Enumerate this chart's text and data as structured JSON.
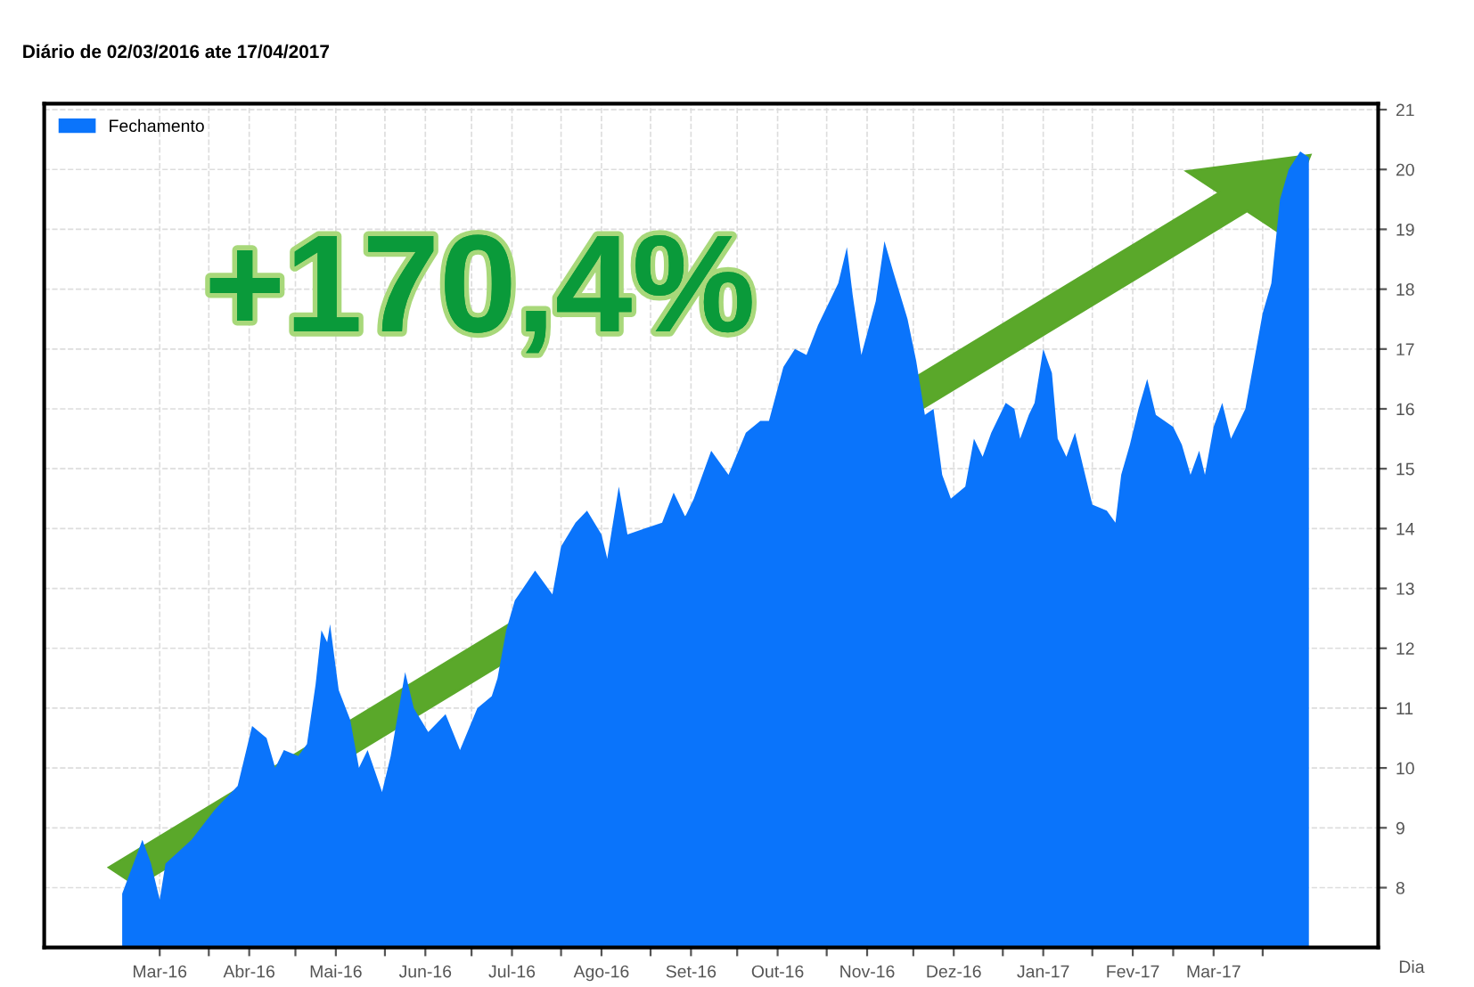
{
  "chart_data": {
    "type": "area",
    "subtitle": "Diário de 02/03/2016 ate 17/04/2017",
    "xlabel": "Dia",
    "annotations": [
      "+170,4%"
    ],
    "x": [
      "2016-03-02",
      "2016-03-09",
      "2016-03-12",
      "2016-03-15",
      "2016-03-17",
      "2016-03-26",
      "2016-04-03",
      "2016-04-11",
      "2016-04-14",
      "2016-04-16",
      "2016-04-21",
      "2016-04-24",
      "2016-04-27",
      "2016-05-02",
      "2016-05-05",
      "2016-05-08",
      "2016-05-10",
      "2016-05-12",
      "2016-05-13",
      "2016-05-16",
      "2016-05-20",
      "2016-05-23",
      "2016-05-26",
      "2016-05-31",
      "2016-06-03",
      "2016-06-08",
      "2016-06-11",
      "2016-06-16",
      "2016-06-22",
      "2016-06-27",
      "2016-07-03",
      "2016-07-08",
      "2016-07-10",
      "2016-07-13",
      "2016-07-16",
      "2016-07-23",
      "2016-07-29",
      "2016-08-01",
      "2016-08-06",
      "2016-08-10",
      "2016-08-15",
      "2016-08-17",
      "2016-08-21",
      "2016-08-24",
      "2016-08-30",
      "2016-09-05",
      "2016-09-09",
      "2016-09-13",
      "2016-09-16",
      "2016-09-22",
      "2016-09-28",
      "2016-10-04",
      "2016-10-09",
      "2016-10-12",
      "2016-10-17",
      "2016-10-21",
      "2016-10-25",
      "2016-10-29",
      "2016-11-05",
      "2016-11-08",
      "2016-11-10",
      "2016-11-13",
      "2016-11-18",
      "2016-11-21",
      "2016-11-24",
      "2016-11-29",
      "2016-12-02",
      "2016-12-05",
      "2016-12-08",
      "2016-12-11",
      "2016-12-14",
      "2016-12-19",
      "2016-12-22",
      "2016-12-25",
      "2016-12-28",
      "2017-01-02",
      "2017-01-05",
      "2017-01-07",
      "2017-01-10",
      "2017-01-12",
      "2017-01-15",
      "2017-01-18",
      "2017-01-20",
      "2017-01-23",
      "2017-01-26",
      "2017-01-29",
      "2017-02-01",
      "2017-02-06",
      "2017-02-09",
      "2017-02-11",
      "2017-02-14",
      "2017-02-17",
      "2017-02-20",
      "2017-02-23",
      "2017-03-01",
      "2017-03-04",
      "2017-03-07",
      "2017-03-10",
      "2017-03-12",
      "2017-03-15",
      "2017-03-18",
      "2017-03-21",
      "2017-03-26",
      "2017-03-29",
      "2017-04-01",
      "2017-04-04",
      "2017-04-07",
      "2017-04-10",
      "2017-04-14",
      "2017-04-17"
    ],
    "series": [
      {
        "name": "Fechamento",
        "color": "#0a74fb",
        "values": [
          7.9,
          8.8,
          8.4,
          7.8,
          8.4,
          8.8,
          9.3,
          9.7,
          10.3,
          10.7,
          10.5,
          10.0,
          10.3,
          10.2,
          10.4,
          11.4,
          12.3,
          12.1,
          12.4,
          11.3,
          10.8,
          10.0,
          10.3,
          9.6,
          10.2,
          11.6,
          11.0,
          10.6,
          10.9,
          10.3,
          11.0,
          11.2,
          11.5,
          12.3,
          12.8,
          13.3,
          12.9,
          13.7,
          14.1,
          14.3,
          13.9,
          13.5,
          14.7,
          13.9,
          14.0,
          14.1,
          14.6,
          14.2,
          14.5,
          15.3,
          14.9,
          15.6,
          15.8,
          15.8,
          16.7,
          17.0,
          16.9,
          17.4,
          18.1,
          18.7,
          17.9,
          16.9,
          17.8,
          18.8,
          18.3,
          17.5,
          16.8,
          15.9,
          16.0,
          14.9,
          14.5,
          14.7,
          15.5,
          15.2,
          15.6,
          16.1,
          16.0,
          15.5,
          15.9,
          16.1,
          17.0,
          16.6,
          15.5,
          15.2,
          15.6,
          15.0,
          14.4,
          14.3,
          14.1,
          14.9,
          15.4,
          16.0,
          16.5,
          15.9,
          15.7,
          15.4,
          14.9,
          15.3,
          14.9,
          15.7,
          16.1,
          15.5,
          16.0,
          16.8,
          17.6,
          18.1,
          19.5,
          20.0,
          20.3,
          20.2
        ]
      }
    ],
    "xlim": [
      "2016-02-04",
      "2017-05-11"
    ],
    "xticks": [
      {
        "value": "2016-03-15",
        "label": "Mar-16"
      },
      {
        "value": "2016-04-01",
        "label": null
      },
      {
        "value": "2016-04-15",
        "label": "Abr-16"
      },
      {
        "value": "2016-05-01",
        "label": null
      },
      {
        "value": "2016-05-15",
        "label": "Mai-16"
      },
      {
        "value": "2016-06-01",
        "label": null
      },
      {
        "value": "2016-06-15",
        "label": "Jun-16"
      },
      {
        "value": "2016-07-01",
        "label": null
      },
      {
        "value": "2016-07-15",
        "label": "Jul-16"
      },
      {
        "value": "2016-08-01",
        "label": null
      },
      {
        "value": "2016-08-15",
        "label": "Ago-16"
      },
      {
        "value": "2016-09-01",
        "label": null
      },
      {
        "value": "2016-09-15",
        "label": "Set-16"
      },
      {
        "value": "2016-10-01",
        "label": null
      },
      {
        "value": "2016-10-15",
        "label": "Out-16"
      },
      {
        "value": "2016-11-01",
        "label": null
      },
      {
        "value": "2016-11-15",
        "label": "Nov-16"
      },
      {
        "value": "2016-12-01",
        "label": null
      },
      {
        "value": "2016-12-15",
        "label": "Dez-16"
      },
      {
        "value": "2017-01-01",
        "label": null
      },
      {
        "value": "2017-01-15",
        "label": "Jan-17"
      },
      {
        "value": "2017-02-01",
        "label": null
      },
      {
        "value": "2017-02-15",
        "label": "Fev-17"
      },
      {
        "value": "2017-03-01",
        "label": null
      },
      {
        "value": "2017-03-15",
        "label": "Mar-17"
      },
      {
        "value": "2017-04-01",
        "label": null
      }
    ],
    "ylim": [
      7,
      21.1
    ],
    "yticks": [
      8,
      9,
      10,
      11,
      12,
      13,
      14,
      15,
      16,
      17,
      18,
      19,
      20,
      21
    ],
    "grid": true,
    "legend": "top left"
  }
}
